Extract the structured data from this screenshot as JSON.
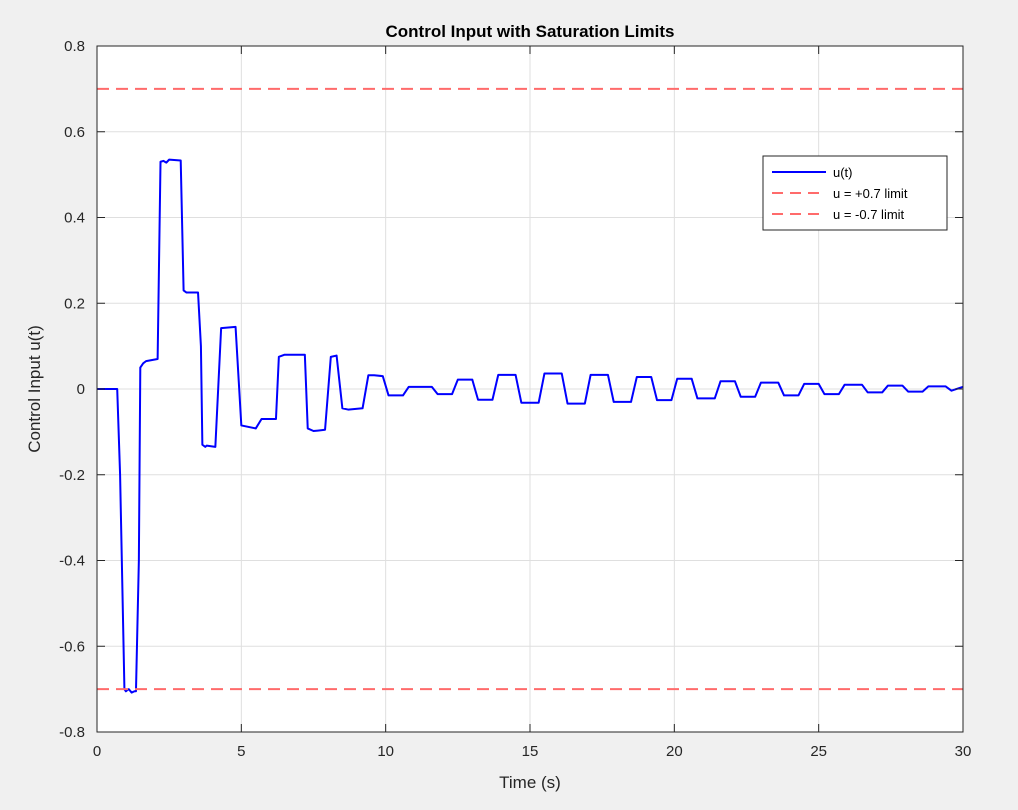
{
  "chart_data": {
    "type": "line",
    "title": "Control Input with Saturation Limits",
    "xlabel": "Time (s)",
    "ylabel": "Control Input u(t)",
    "xlim": [
      0,
      30
    ],
    "ylim": [
      -0.8,
      0.8
    ],
    "xticks": [
      0,
      5,
      10,
      15,
      20,
      25,
      30
    ],
    "xtick_labels": [
      "0",
      "5",
      "10",
      "15",
      "20",
      "25",
      "30"
    ],
    "yticks": [
      -0.8,
      -0.6,
      -0.4,
      -0.2,
      0,
      0.2,
      0.4,
      0.6,
      0.8
    ],
    "ytick_labels": [
      "-0.8",
      "-0.6",
      "-0.4",
      "-0.2",
      "0",
      "0.2",
      "0.4",
      "0.6",
      "0.8"
    ],
    "grid": true,
    "legend_position": "top-right",
    "series": [
      {
        "name": "u(t)",
        "color": "#0000ff",
        "style": "solid",
        "x": [
          0,
          0.7,
          0.8,
          0.95,
          1.0,
          1.1,
          1.2,
          1.3,
          1.35,
          1.45,
          1.5,
          1.6,
          1.7,
          2.1,
          2.2,
          2.3,
          2.4,
          2.5,
          2.9,
          3.0,
          3.1,
          3.5,
          3.6,
          3.65,
          3.75,
          3.8,
          4.1,
          4.3,
          4.8,
          5.0,
          5.5,
          5.7,
          6.2,
          6.3,
          6.5,
          6.65,
          7.2,
          7.3,
          7.5,
          7.65,
          7.9,
          8.1,
          8.3,
          8.5,
          8.7,
          9.2,
          9.4,
          9.6,
          9.9,
          10.1,
          10.6,
          10.8,
          11.6,
          11.8,
          12.3,
          12.5,
          13.0,
          13.2,
          13.7,
          13.9,
          14.5,
          14.7,
          15.3,
          15.5,
          16.1,
          16.3,
          16.9,
          17.1,
          17.7,
          17.9,
          18.5,
          18.7,
          19.2,
          19.4,
          19.9,
          20.1,
          20.6,
          20.8,
          21.4,
          21.6,
          22.1,
          22.3,
          22.8,
          23.0,
          23.6,
          23.8,
          24.3,
          24.5,
          25.0,
          25.2,
          25.7,
          25.9,
          26.5,
          26.7,
          27.2,
          27.4,
          27.9,
          28.1,
          28.6,
          28.8,
          29.4,
          29.6,
          30.0
        ],
        "y": [
          0,
          0,
          -0.2,
          -0.7,
          -0.705,
          -0.7,
          -0.708,
          -0.705,
          -0.705,
          -0.4,
          0.05,
          0.06,
          0.065,
          0.07,
          0.53,
          0.532,
          0.528,
          0.535,
          0.533,
          0.23,
          0.225,
          0.225,
          0.1,
          -0.13,
          -0.135,
          -0.132,
          -0.135,
          0.142,
          0.145,
          -0.085,
          -0.092,
          -0.07,
          -0.07,
          0.075,
          0.08,
          0.08,
          0.08,
          -0.092,
          -0.098,
          -0.097,
          -0.095,
          0.075,
          0.078,
          -0.045,
          -0.048,
          -0.045,
          0.032,
          0.032,
          0.03,
          -0.015,
          -0.015,
          0.005,
          0.005,
          -0.012,
          -0.012,
          0.022,
          0.022,
          -0.025,
          -0.025,
          0.033,
          0.033,
          -0.032,
          -0.032,
          0.036,
          0.036,
          -0.034,
          -0.034,
          0.033,
          0.033,
          -0.03,
          -0.03,
          0.028,
          0.028,
          -0.026,
          -0.026,
          0.024,
          0.024,
          -0.022,
          -0.022,
          0.018,
          0.018,
          -0.018,
          -0.018,
          0.015,
          0.015,
          -0.015,
          -0.015,
          0.012,
          0.012,
          -0.012,
          -0.012,
          0.01,
          0.01,
          -0.008,
          -0.008,
          0.008,
          0.008,
          -0.006,
          -0.006,
          0.006,
          0.006,
          -0.004,
          0.005
        ]
      },
      {
        "name": "u = +0.7 limit",
        "color": "#ff6b6b",
        "style": "dashed",
        "x": [
          0,
          30
        ],
        "y": [
          0.7,
          0.7
        ]
      },
      {
        "name": "u = -0.7 limit",
        "color": "#ff6b6b",
        "style": "dashed",
        "x": [
          0,
          30
        ],
        "y": [
          -0.7,
          -0.7
        ]
      }
    ]
  }
}
